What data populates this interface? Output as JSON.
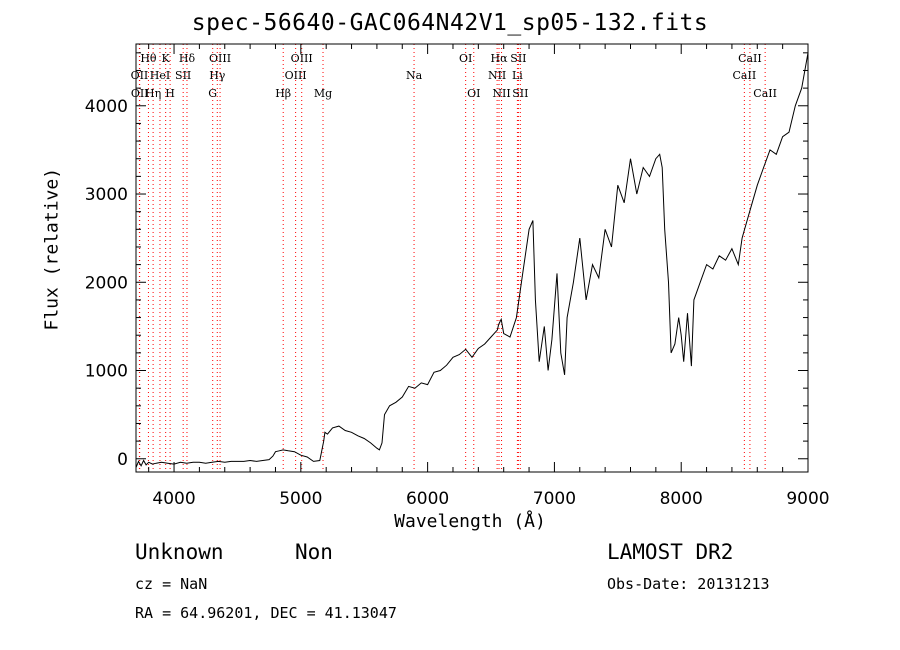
{
  "title": "spec-56640-GAC064N42V1_sp05-132.fits",
  "info": {
    "class_label": "Unknown",
    "subclass_label": "Non",
    "survey": "LAMOST DR2",
    "cz": "cz = NaN",
    "obs_date": "Obs-Date: 20131213",
    "coords": "RA =  64.96201, DEC =  41.13047"
  },
  "colors": {
    "line_marker": "#ff0000",
    "spectrum": "#000000"
  },
  "chart_data": {
    "type": "line",
    "xlabel": "Wavelength (Å)",
    "ylabel": "Flux (relative)",
    "xlim": [
      3700,
      9000
    ],
    "ylim": [
      -150,
      4700
    ],
    "xticks": [
      4000,
      5000,
      6000,
      7000,
      8000,
      9000
    ],
    "yticks": [
      0,
      1000,
      2000,
      3000,
      4000
    ],
    "grid": false,
    "series": [
      {
        "x": [
          3700,
          3720,
          3740,
          3760,
          3780,
          3800,
          3830,
          3860,
          3900,
          3950,
          4000,
          4050,
          4100,
          4150,
          4200,
          4250,
          4300,
          4350,
          4400,
          4450,
          4500,
          4550,
          4600,
          4650,
          4700,
          4750,
          4780,
          4800,
          4830,
          4860,
          4900,
          4950,
          5000,
          5050,
          5100,
          5150,
          5180,
          5190,
          5210,
          5250,
          5300,
          5350,
          5400,
          5450,
          5500,
          5550,
          5600,
          5620,
          5640,
          5660,
          5700,
          5750,
          5800,
          5850,
          5900,
          5950,
          6000,
          6050,
          6100,
          6150,
          6200,
          6250,
          6300,
          6350,
          6400,
          6450,
          6500,
          6550,
          6560,
          6580,
          6600,
          6650,
          6700,
          6750,
          6800,
          6830,
          6850,
          6880,
          6920,
          6950,
          6980,
          7020,
          7050,
          7080,
          7100,
          7150,
          7200,
          7250,
          7300,
          7350,
          7400,
          7450,
          7500,
          7550,
          7600,
          7650,
          7700,
          7750,
          7800,
          7830,
          7850,
          7870,
          7900,
          7920,
          7950,
          7980,
          8000,
          8020,
          8050,
          8080,
          8100,
          8150,
          8200,
          8250,
          8300,
          8350,
          8400,
          8450,
          8480,
          8500,
          8550,
          8600,
          8650,
          8700,
          8750,
          8800,
          8850,
          8900,
          8950,
          9000
        ],
        "y": [
          -100,
          -30,
          -80,
          -20,
          -70,
          -40,
          -60,
          -50,
          -40,
          -50,
          -60,
          -40,
          -50,
          -40,
          -40,
          -50,
          -40,
          -30,
          -40,
          -30,
          -30,
          -30,
          -20,
          -30,
          -20,
          -10,
          30,
          80,
          90,
          100,
          90,
          80,
          40,
          20,
          -30,
          -20,
          200,
          300,
          280,
          350,
          370,
          320,
          300,
          260,
          230,
          180,
          120,
          100,
          180,
          500,
          600,
          640,
          700,
          820,
          800,
          860,
          840,
          980,
          1000,
          1060,
          1150,
          1180,
          1240,
          1150,
          1250,
          1300,
          1380,
          1460,
          1520,
          1580,
          1420,
          1380,
          1600,
          2100,
          2600,
          2700,
          1800,
          1100,
          1500,
          1000,
          1350,
          2100,
          1200,
          950,
          1600,
          2000,
          2500,
          1800,
          2200,
          2050,
          2600,
          2400,
          3100,
          2900,
          3400,
          3000,
          3300,
          3200,
          3400,
          3450,
          3300,
          2600,
          2000,
          1200,
          1300,
          1600,
          1400,
          1100,
          1650,
          1050,
          1800,
          2000,
          2200,
          2150,
          2300,
          2250,
          2380,
          2200,
          2500,
          2600,
          2850,
          3100,
          3300,
          3500,
          3450,
          3650,
          3700,
          4000,
          4200,
          4600
        ]
      }
    ],
    "line_markers": [
      {
        "label": "Hθ",
        "x": 3798,
        "row": 0
      },
      {
        "label": "OII",
        "x": 3727,
        "row": 1
      },
      {
        "label": "OII",
        "x": 3729,
        "row": 2
      },
      {
        "label": "Hη",
        "x": 3835,
        "row": 2
      },
      {
        "label": "HeI",
        "x": 3889,
        "row": 1
      },
      {
        "label": "K",
        "x": 3934,
        "row": 0
      },
      {
        "label": "H",
        "x": 3969,
        "row": 2
      },
      {
        "label": "SII",
        "x": 4072,
        "row": 1
      },
      {
        "label": "Hδ",
        "x": 4102,
        "row": 0
      },
      {
        "label": "OIII",
        "x": 4363,
        "row": 0
      },
      {
        "label": "Hγ",
        "x": 4341,
        "row": 1
      },
      {
        "label": "G",
        "x": 4305,
        "row": 2
      },
      {
        "label": "Hβ",
        "x": 4861,
        "row": 2
      },
      {
        "label": "OIII",
        "x": 5007,
        "row": 0
      },
      {
        "label": "OIII",
        "x": 4959,
        "row": 1
      },
      {
        "label": "Mg",
        "x": 5175,
        "row": 2
      },
      {
        "label": "Na",
        "x": 5893,
        "row": 1
      },
      {
        "label": "OI",
        "x": 6300,
        "row": 0
      },
      {
        "label": "OI",
        "x": 6364,
        "row": 2
      },
      {
        "label": "Hα",
        "x": 6563,
        "row": 0
      },
      {
        "label": "NII",
        "x": 6548,
        "row": 1
      },
      {
        "label": "NII",
        "x": 6583,
        "row": 2
      },
      {
        "label": "SII",
        "x": 6716,
        "row": 0
      },
      {
        "label": "Li",
        "x": 6708,
        "row": 1
      },
      {
        "label": "SII",
        "x": 6731,
        "row": 2
      },
      {
        "label": "CaII",
        "x": 8542,
        "row": 0
      },
      {
        "label": "CaII",
        "x": 8498,
        "row": 1
      },
      {
        "label": "CaII",
        "x": 8662,
        "row": 2
      }
    ]
  }
}
